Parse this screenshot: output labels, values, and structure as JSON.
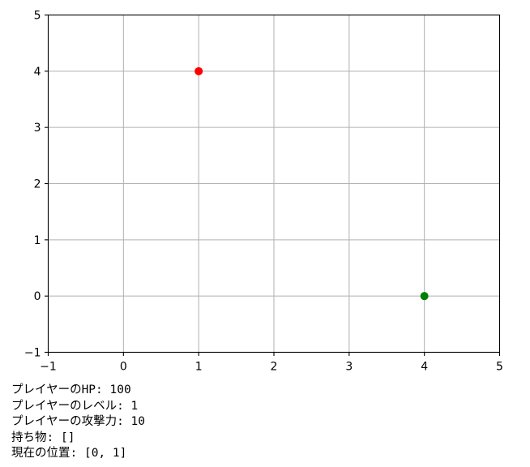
{
  "chart_data": {
    "type": "scatter",
    "title": "",
    "xlabel": "",
    "ylabel": "",
    "xlim": [
      -1,
      5
    ],
    "ylim": [
      -1,
      5
    ],
    "x_ticks": [
      -1,
      0,
      1,
      2,
      3,
      4,
      5
    ],
    "y_ticks": [
      -1,
      0,
      1,
      2,
      3,
      4,
      5
    ],
    "grid": true,
    "series": [
      {
        "color": "#ff0000",
        "points": [
          {
            "x": 1,
            "y": 4
          }
        ]
      },
      {
        "color": "#008000",
        "points": [
          {
            "x": 4,
            "y": 0
          }
        ]
      }
    ]
  },
  "status": {
    "hp_line": "プレイヤーのHP: 100",
    "level_line": "プレイヤーのレベル: 1",
    "attack_line": "プレイヤーの攻撃力: 10",
    "inventory_line": "持ち物: []",
    "position_line": "現在の位置: [0, 1]"
  }
}
